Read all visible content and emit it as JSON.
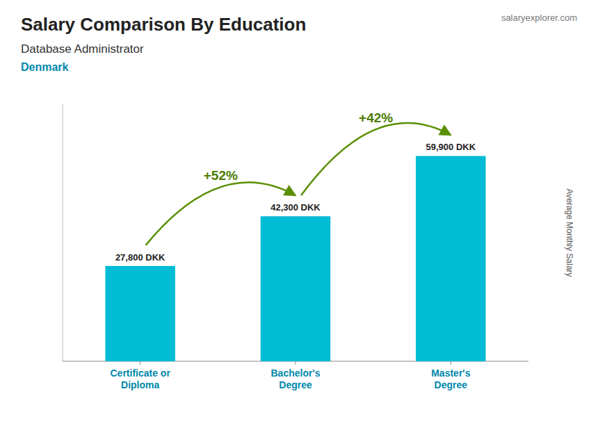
{
  "chart_data": {
    "type": "bar",
    "title": "Salary Comparison By Education",
    "subtitle": "Database Administrator",
    "country": "Denmark",
    "source": "salaryexplorer.com",
    "ylabel": "Average Monthly Salary",
    "categories": [
      "Certificate or\nDiploma",
      "Bachelor's\nDegree",
      "Master's\nDegree"
    ],
    "values": [
      27800,
      42300,
      59900
    ],
    "value_labels": [
      "27,800 DKK",
      "42,300 DKK",
      "59,900 DKK"
    ],
    "data_labels": true,
    "annotations": [
      "+52%",
      "+42%"
    ],
    "color": "#00bcd4",
    "ylim": [
      0,
      75000
    ],
    "tick_labels": "x",
    "grid": false
  }
}
